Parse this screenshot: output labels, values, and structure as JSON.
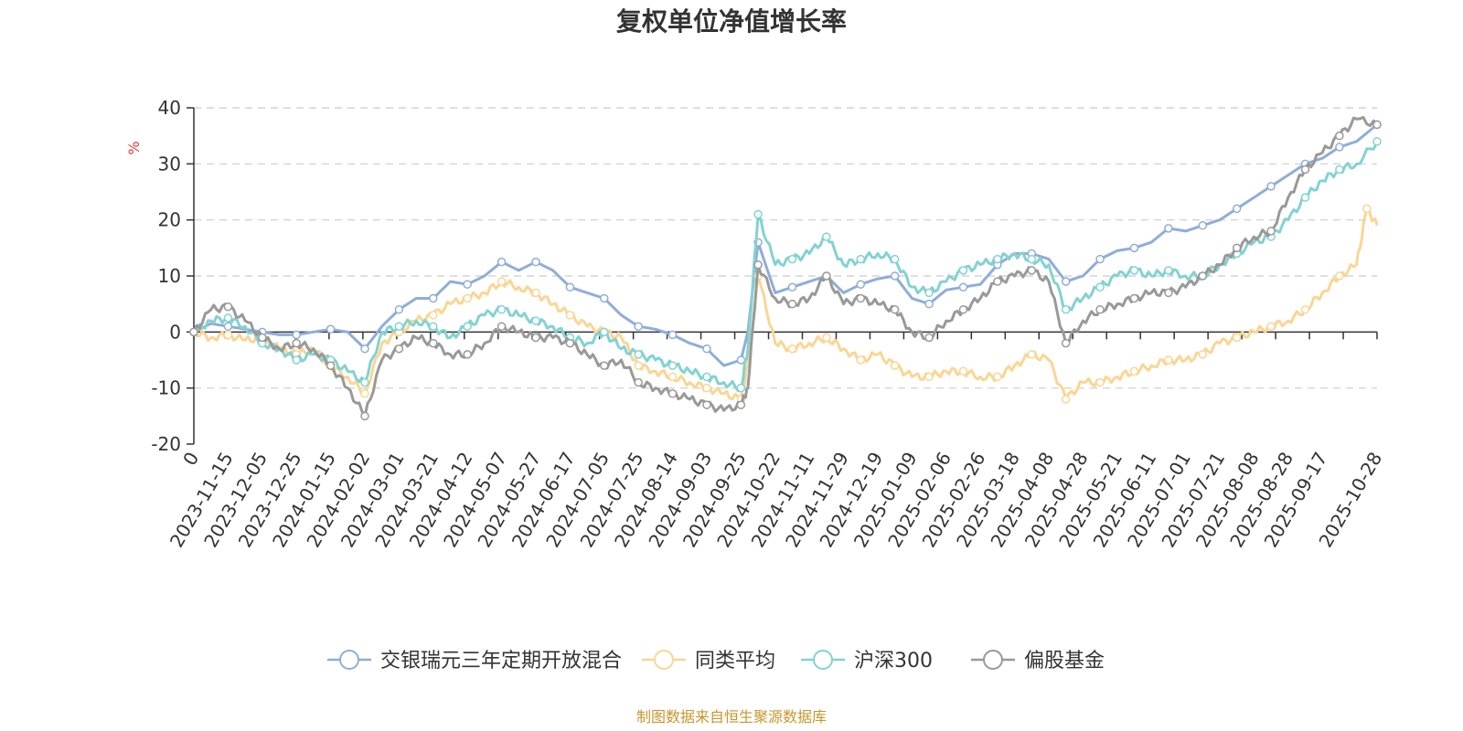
{
  "chart_data": {
    "type": "line",
    "title": "复权单位净值增长率",
    "ylabel": "%",
    "ylim": [
      -20,
      40
    ],
    "yticks": [
      "40",
      "30",
      "20",
      "10",
      "0",
      "-10",
      "-20"
    ],
    "xtick_labels": [
      "0",
      "2023-11-15",
      "2023-12-05",
      "2023-12-25",
      "2024-01-15",
      "2024-02-02",
      "2024-03-01",
      "2024-03-21",
      "2024-04-12",
      "2024-05-07",
      "2024-05-27",
      "2024-06-17",
      "2024-07-05",
      "2024-07-25",
      "2024-08-14",
      "2024-09-03",
      "2024-09-25",
      "2024-10-22",
      "2024-11-11",
      "2024-11-29",
      "2024-12-19",
      "2025-01-09",
      "2025-02-06",
      "2025-02-26",
      "2025-03-18",
      "2025-04-08",
      "2025-04-28",
      "2025-05-21",
      "2025-06-11",
      "2025-07-01",
      "2025-07-21",
      "2025-08-08",
      "2025-08-28",
      "2025-09-17",
      "2025-10-28"
    ],
    "x_positions": [
      0,
      1,
      2,
      3,
      4,
      5,
      6,
      7,
      8,
      9,
      10,
      11,
      12,
      13,
      14,
      15,
      16,
      17,
      18,
      19,
      20,
      21,
      22,
      23,
      24,
      25,
      26,
      27,
      28,
      29,
      30,
      31,
      32,
      33,
      34.6
    ],
    "series": [
      {
        "name": "交银瑞元三年定期开放混合",
        "color": "#8fadd9",
        "x": [
          0,
          0.5,
          1,
          1.5,
          2,
          2.5,
          3,
          3.5,
          4,
          4.5,
          5,
          5.5,
          6,
          6.5,
          7,
          7.5,
          8,
          8.5,
          9,
          9.5,
          10,
          10.5,
          11,
          11.5,
          12,
          12.5,
          13,
          13.5,
          14,
          14.5,
          15,
          15.5,
          16,
          16.2,
          16.5,
          17,
          17.5,
          18,
          18.5,
          19,
          19.5,
          20,
          20.5,
          21,
          21.5,
          22,
          22.5,
          23,
          23.5,
          24,
          24.5,
          25,
          25.5,
          26,
          26.5,
          27,
          27.5,
          28,
          28.5,
          29,
          29.5,
          30,
          30.5,
          31,
          31.5,
          32,
          32.5,
          33,
          33.5,
          34,
          34.6
        ],
        "values": [
          0,
          1.5,
          1,
          0.5,
          0,
          -0.5,
          -0.5,
          0,
          0.5,
          0,
          -3,
          1,
          4,
          6,
          6,
          9,
          8.5,
          10,
          12.5,
          11,
          12.5,
          11,
          8,
          7,
          6,
          3,
          1,
          0.5,
          -0.5,
          -2,
          -3,
          -6,
          -5,
          0,
          16,
          7,
          8,
          9,
          10,
          7,
          8.5,
          9.5,
          10,
          6,
          5,
          7.5,
          8,
          8.5,
          12,
          14,
          14,
          13,
          9,
          10,
          13,
          14.5,
          15,
          16,
          18.5,
          18,
          19,
          20,
          22,
          24,
          26,
          28,
          30,
          31,
          33,
          34,
          37
        ]
      },
      {
        "name": "同类平均",
        "color": "#f9d694",
        "x": [
          0,
          0.5,
          1,
          1.5,
          2,
          2.5,
          3,
          3.5,
          4,
          4.5,
          5,
          5.5,
          6,
          6.5,
          7,
          7.5,
          8,
          8.5,
          9,
          9.5,
          10,
          10.5,
          11,
          11.5,
          12,
          12.5,
          13,
          13.5,
          14,
          14.5,
          15,
          15.5,
          16,
          16.2,
          16.5,
          17,
          17.5,
          18,
          18.5,
          19,
          19.5,
          20,
          20.5,
          21,
          21.5,
          22,
          22.5,
          23,
          23.5,
          24,
          24.5,
          25,
          25.5,
          26,
          26.5,
          27,
          27.5,
          28,
          28.5,
          29,
          29.5,
          30,
          30.5,
          31,
          31.5,
          32,
          32.5,
          33,
          33.5,
          34,
          34.3,
          34.6
        ],
        "values": [
          0,
          -1,
          -0.5,
          -1.5,
          -1,
          -3,
          -4,
          -3,
          -6,
          -8,
          -11,
          -2,
          0,
          2,
          3,
          5,
          6,
          7,
          9,
          8,
          7,
          5,
          3,
          1,
          0,
          -1,
          -6,
          -7,
          -8,
          -9,
          -10,
          -11,
          -12,
          -6,
          10,
          -2,
          -3,
          -2,
          -1,
          -3,
          -5,
          -4,
          -6,
          -8,
          -8,
          -7,
          -7,
          -8,
          -8,
          -6,
          -4,
          -5,
          -12,
          -9,
          -9,
          -8,
          -7,
          -6,
          -5,
          -5,
          -4,
          -2,
          -1,
          0,
          1,
          2,
          4,
          7,
          10,
          12,
          22,
          19
        ]
      },
      {
        "name": "沪深300",
        "color": "#84d2d2",
        "x": [
          0,
          0.5,
          1,
          1.5,
          2,
          2.5,
          3,
          3.5,
          4,
          4.5,
          5,
          5.5,
          6,
          6.5,
          7,
          7.5,
          8,
          8.5,
          9,
          9.5,
          10,
          10.5,
          11,
          11.5,
          12,
          12.5,
          13,
          13.5,
          14,
          14.5,
          15,
          15.5,
          16,
          16.2,
          16.5,
          17,
          17.5,
          18,
          18.5,
          19,
          19.5,
          20,
          20.5,
          21,
          21.5,
          22,
          22.5,
          23,
          23.5,
          24,
          24.5,
          25,
          25.5,
          26,
          26.5,
          27,
          27.5,
          28,
          28.5,
          29,
          29.5,
          30,
          30.5,
          31,
          31.5,
          32,
          32.5,
          33,
          33.5,
          34,
          34.6
        ],
        "values": [
          0,
          2,
          2.5,
          1,
          -2,
          -3,
          -5,
          -4,
          -5,
          -7,
          -9,
          0,
          1,
          2,
          1,
          -1,
          1,
          3,
          4,
          3,
          2,
          1,
          -1,
          -2,
          0,
          -3,
          -4,
          -5,
          -6,
          -7,
          -8,
          -9,
          -10,
          -3,
          21,
          12,
          13,
          14,
          17,
          12,
          13,
          14,
          13,
          8,
          7,
          9,
          11,
          12,
          13,
          14,
          13,
          12,
          4,
          6,
          8,
          10,
          11,
          10,
          11,
          10,
          10,
          12,
          14,
          16,
          17,
          20,
          24,
          27,
          29,
          30,
          34
        ]
      },
      {
        "name": "偏股基金",
        "color": "#999999",
        "x": [
          0,
          0.5,
          1,
          1.5,
          2,
          2.5,
          3,
          3.5,
          4,
          4.5,
          5,
          5.5,
          6,
          6.5,
          7,
          7.5,
          8,
          8.5,
          9,
          9.5,
          10,
          10.5,
          11,
          11.5,
          12,
          12.5,
          13,
          13.5,
          14,
          14.5,
          15,
          15.5,
          16,
          16.2,
          16.5,
          17,
          17.5,
          18,
          18.5,
          19,
          19.5,
          20,
          20.5,
          21,
          21.5,
          22,
          22.5,
          23,
          23.5,
          24,
          24.5,
          25,
          25.5,
          26,
          26.5,
          27,
          27.5,
          28,
          28.5,
          29,
          29.5,
          30,
          30.5,
          31,
          31.5,
          32,
          32.5,
          33,
          33.5,
          34,
          34.6
        ],
        "values": [
          0,
          4,
          4.5,
          2,
          -1,
          -3,
          -2,
          -3,
          -6,
          -10,
          -15,
          -5,
          -3,
          -1,
          -2,
          -4,
          -4,
          -2,
          1,
          0,
          -1,
          -1,
          -2,
          -4,
          -6,
          -5,
          -9,
          -10,
          -11,
          -12,
          -13,
          -14,
          -13,
          -10,
          12,
          6,
          5,
          6,
          10,
          5,
          6,
          5,
          4,
          0,
          -1,
          2,
          4,
          6,
          9,
          10,
          11,
          9,
          -2,
          2,
          4,
          5,
          6,
          7,
          7,
          8,
          10,
          12,
          15,
          17,
          18,
          24,
          29,
          32,
          35,
          38,
          37
        ]
      }
    ],
    "legend": [
      "交银瑞元三年定期开放混合",
      "同类平均",
      "沪深300",
      "偏股基金"
    ],
    "legend_position": "bottom",
    "grid": true
  },
  "source_note": "制图数据来自恒生聚源数据库"
}
